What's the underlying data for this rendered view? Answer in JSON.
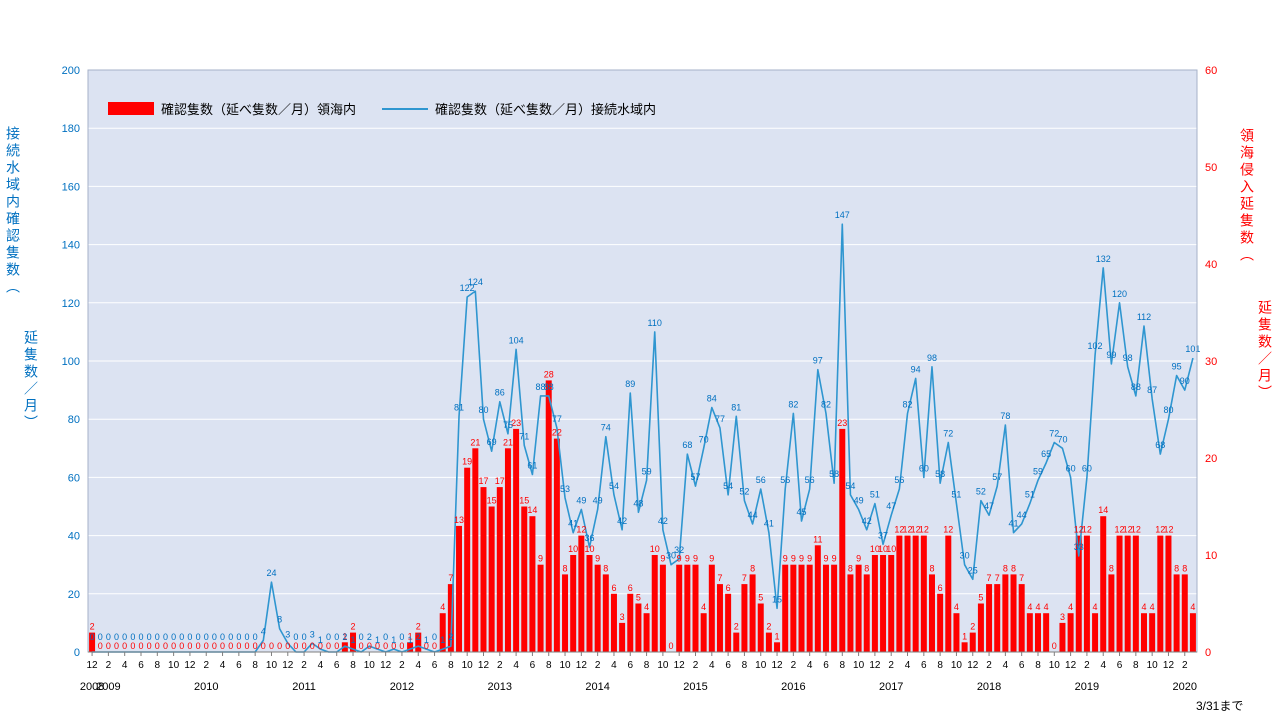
{
  "legend": {
    "bar_label": "確認隻数（延べ隻数／月）領海内",
    "line_label": "確認隻数（延べ隻数／月）接続水域内"
  },
  "note": "3/31まで",
  "chart_data": {
    "type": "combo",
    "title": "",
    "grid": true,
    "legend_position": "top-left-inside",
    "plot_bg": "#dce3f2",
    "grid_color": "#ffffff",
    "border_color": "#a6b2c8",
    "months": [
      "2008-12",
      "2009-01",
      "2009-02",
      "2009-03",
      "2009-04",
      "2009-05",
      "2009-06",
      "2009-07",
      "2009-08",
      "2009-09",
      "2009-10",
      "2009-11",
      "2009-12",
      "2010-01",
      "2010-02",
      "2010-03",
      "2010-04",
      "2010-05",
      "2010-06",
      "2010-07",
      "2010-08",
      "2010-09",
      "2010-10",
      "2010-11",
      "2010-12",
      "2011-01",
      "2011-02",
      "2011-03",
      "2011-04",
      "2011-05",
      "2011-06",
      "2011-07",
      "2011-08",
      "2011-09",
      "2011-10",
      "2011-11",
      "2011-12",
      "2012-01",
      "2012-02",
      "2012-03",
      "2012-04",
      "2012-05",
      "2012-06",
      "2012-07",
      "2012-08",
      "2012-09",
      "2012-10",
      "2012-11",
      "2012-12",
      "2013-01",
      "2013-02",
      "2013-03",
      "2013-04",
      "2013-05",
      "2013-06",
      "2013-07",
      "2013-08",
      "2013-09",
      "2013-10",
      "2013-11",
      "2013-12",
      "2014-01",
      "2014-02",
      "2014-03",
      "2014-04",
      "2014-05",
      "2014-06",
      "2014-07",
      "2014-08",
      "2014-09",
      "2014-10",
      "2014-11",
      "2014-12",
      "2015-01",
      "2015-02",
      "2015-03",
      "2015-04",
      "2015-05",
      "2015-06",
      "2015-07",
      "2015-08",
      "2015-09",
      "2015-10",
      "2015-11",
      "2015-12",
      "2016-01",
      "2016-02",
      "2016-03",
      "2016-04",
      "2016-05",
      "2016-06",
      "2016-07",
      "2016-08",
      "2016-09",
      "2016-10",
      "2016-11",
      "2016-12",
      "2017-01",
      "2017-02",
      "2017-03",
      "2017-04",
      "2017-05",
      "2017-06",
      "2017-07",
      "2017-08",
      "2017-09",
      "2017-10",
      "2017-11",
      "2017-12",
      "2018-01",
      "2018-02",
      "2018-03",
      "2018-04",
      "2018-05",
      "2018-06",
      "2018-07",
      "2018-08",
      "2018-09",
      "2018-10",
      "2018-11",
      "2018-12",
      "2019-01",
      "2019-02",
      "2019-03",
      "2019-04",
      "2019-05",
      "2019-06",
      "2019-07",
      "2019-08",
      "2019-09",
      "2019-10",
      "2019-11",
      "2019-12",
      "2020-01",
      "2020-02",
      "2020-03"
    ],
    "series": [
      {
        "name": "確認隻数（延べ隻数／月）領海内",
        "type": "bar",
        "axis": "right",
        "color": "#ff0000",
        "values": [
          2,
          0,
          0,
          0,
          0,
          0,
          0,
          0,
          0,
          0,
          0,
          0,
          0,
          0,
          0,
          0,
          0,
          0,
          0,
          0,
          0,
          0,
          0,
          0,
          0,
          0,
          0,
          0,
          0,
          0,
          0,
          1,
          2,
          0,
          0,
          0,
          0,
          0,
          0,
          1,
          2,
          0,
          0,
          4,
          7,
          13,
          19,
          21,
          17,
          15,
          17,
          21,
          23,
          15,
          14,
          9,
          28,
          22,
          8,
          10,
          12,
          10,
          9,
          8,
          6,
          3,
          6,
          5,
          4,
          10,
          9,
          0,
          9,
          9,
          9,
          4,
          9,
          7,
          6,
          2,
          7,
          8,
          5,
          2,
          1,
          9,
          9,
          9,
          9,
          11,
          9,
          9,
          23,
          8,
          9,
          8,
          10,
          10,
          10,
          12,
          12,
          12,
          12,
          8,
          6,
          12,
          4,
          1,
          2,
          5,
          7,
          7,
          8,
          8,
          7,
          4,
          4,
          4,
          0,
          3,
          4,
          12,
          12,
          4,
          14,
          8,
          12,
          12,
          12,
          4,
          4,
          12,
          12,
          8,
          8,
          4
        ]
      },
      {
        "name": "確認隻数（延べ隻数／月）接続水域内",
        "type": "line",
        "axis": "left",
        "color": "#2f96d0",
        "label_color": "#0070c0",
        "values": [
          0,
          0,
          0,
          0,
          0,
          0,
          0,
          0,
          0,
          0,
          0,
          0,
          0,
          0,
          0,
          0,
          0,
          0,
          0,
          0,
          0,
          4,
          24,
          8,
          3,
          0,
          0,
          3,
          1,
          0,
          0,
          2,
          1,
          0,
          2,
          1,
          0,
          1,
          0,
          1,
          2,
          1,
          0,
          1,
          2,
          81,
          122,
          124,
          80,
          69,
          86,
          75,
          104,
          71,
          61,
          88,
          88,
          77,
          53,
          41,
          49,
          36,
          49,
          74,
          54,
          42,
          89,
          48,
          59,
          110,
          42,
          30,
          32,
          68,
          57,
          70,
          84,
          77,
          54,
          81,
          52,
          44,
          56,
          41,
          15,
          56,
          82,
          45,
          56,
          97,
          82,
          58,
          147,
          54,
          49,
          42,
          51,
          37,
          47,
          56,
          82,
          94,
          60,
          98,
          58,
          72,
          51,
          30,
          25,
          52,
          47,
          57,
          78,
          41,
          44,
          51,
          59,
          65,
          72,
          70,
          60,
          33,
          60,
          102,
          132,
          99,
          120,
          98,
          88,
          112,
          87,
          68,
          80,
          95,
          90,
          101
        ]
      }
    ],
    "left_axis": {
      "title": "接続水域内確認隻数（延隻数／月）",
      "title_line1": "接続水域内確認隻数（",
      "title_line2": "延隻数／月）",
      "min": 0,
      "max": 200,
      "step": 20,
      "color": "#0070c0"
    },
    "right_axis": {
      "title": "領海侵入延隻数（延隻数／月）",
      "title_line1": "領海侵入延隻数（",
      "title_line2": "延隻数／月）",
      "min": 0,
      "max": 60,
      "step": 10,
      "color": "#ff0000"
    },
    "x_axis": {
      "tick_every_months": 2,
      "year_labels": [
        "2008",
        "2009",
        "2010",
        "2011",
        "2012",
        "2013",
        "2014",
        "2015",
        "2016",
        "2017",
        "2018",
        "2019",
        "2020"
      ]
    }
  }
}
